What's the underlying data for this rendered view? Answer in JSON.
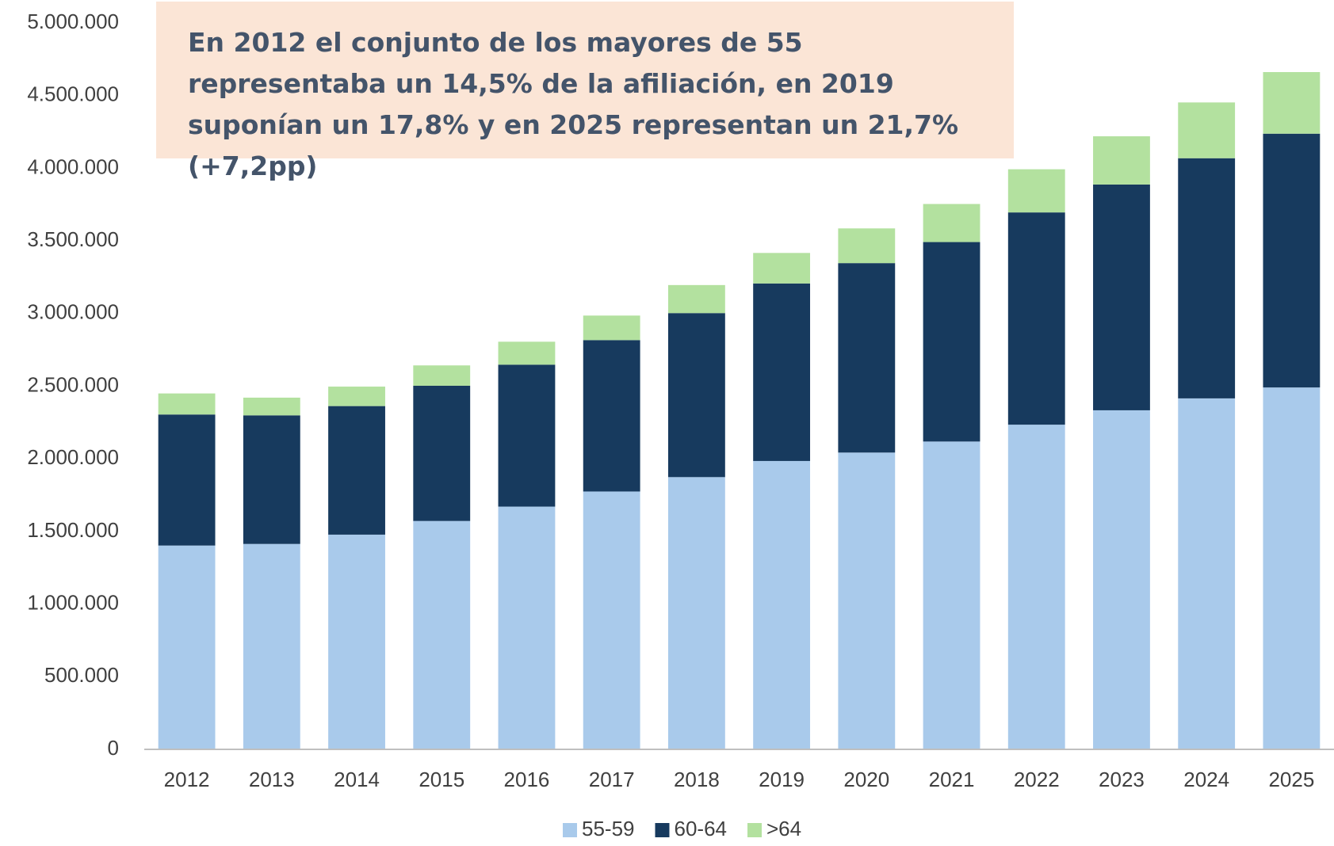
{
  "chart_data": {
    "type": "stacked_bar",
    "annotation": "En 2012 el conjunto de los mayores de 55 representaba un 14,5% de la afiliación, en 2019 suponían un 17,8% y en 2025 representan un 21,7% (+7,2pp)",
    "categories": [
      "2012",
      "2013",
      "2014",
      "2015",
      "2016",
      "2017",
      "2018",
      "2019",
      "2020",
      "2021",
      "2022",
      "2023",
      "2024",
      "2025"
    ],
    "series": [
      {
        "name": "55-59",
        "color": "#a9caeb",
        "values": [
          1403000,
          1414000,
          1478000,
          1572000,
          1671000,
          1775000,
          1874000,
          1985000,
          2043000,
          2119000,
          2235000,
          2334000,
          2416000,
          2491000
        ]
      },
      {
        "name": "60-64",
        "color": "#173a5e",
        "values": [
          902000,
          885000,
          885000,
          931000,
          977000,
          1042000,
          1129000,
          1222000,
          1304000,
          1373000,
          1461000,
          1554000,
          1653000,
          1747000
        ]
      },
      {
        "name": ">64",
        "color": "#b3e19f",
        "values": [
          145000,
          122000,
          134000,
          140000,
          158000,
          169000,
          193000,
          210000,
          239000,
          262000,
          297000,
          332000,
          384000,
          424000
        ]
      }
    ],
    "ylim": [
      0,
      5000000
    ],
    "yticks": [
      0,
      {
        "value": 500000,
        "label": "500.000"
      },
      {
        "value": 1000000,
        "label": "1.000.000"
      },
      {
        "value": 1500000,
        "label": "1.500.000"
      },
      {
        "value": 2000000,
        "label": "2.000.000"
      },
      {
        "value": 2500000,
        "label": "2.500.000"
      },
      {
        "value": 3000000,
        "label": "3.000.000"
      },
      {
        "value": 3500000,
        "label": "3.500.000"
      },
      {
        "value": 4000000,
        "label": "4.000.000"
      },
      {
        "value": 4500000,
        "label": "4.500.000"
      },
      {
        "value": 5000000,
        "label": "5.000.000"
      }
    ],
    "grid": false,
    "legend": "bottom"
  }
}
